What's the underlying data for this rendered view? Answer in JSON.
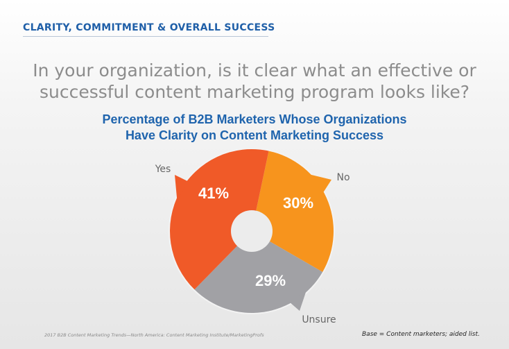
{
  "section_header": "CLARITY, COMMITMENT & OVERALL SUCCESS",
  "question": [
    "In your organization, is it clear what an effective or",
    "successful content marketing program looks like?"
  ],
  "chart_data": {
    "type": "pie",
    "variant": "donut",
    "title": [
      "Percentage of B2B Marketers Whose Organizations",
      "Have Clarity on Content Marketing Success"
    ],
    "categories": [
      "No",
      "Unsure",
      "Yes"
    ],
    "values": [
      30,
      29,
      41
    ],
    "value_labels": [
      "30%",
      "29%",
      "41%"
    ],
    "colors": [
      "#f7941d",
      "#a1a1a5",
      "#f05a28"
    ],
    "legend": "none"
  },
  "footer": {
    "source": "2017 B2B Content Marketing Trends—North America: Content Marketing Institute/MarketingProfs",
    "base": "Base = Content marketers; aided list."
  }
}
